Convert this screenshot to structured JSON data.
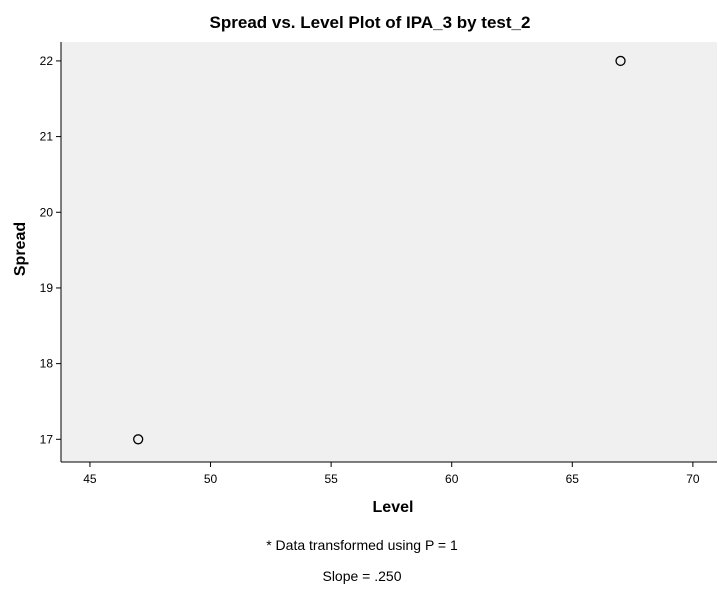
{
  "chart_data": {
    "type": "scatter",
    "title": "Spread vs. Level Plot of IPA_3 by test_2",
    "xlabel": "Level",
    "ylabel": "Spread",
    "xlim": [
      43.8,
      71
    ],
    "ylim": [
      16.7,
      22.25
    ],
    "xticks": [
      "45",
      "50",
      "55",
      "60",
      "65",
      "70"
    ],
    "yticks": [
      "17",
      "18",
      "19",
      "20",
      "21",
      "22"
    ],
    "grid": false,
    "marker": "open-circle",
    "points": [
      {
        "x": 47,
        "y": 17
      },
      {
        "x": 67,
        "y": 22
      }
    ],
    "annotations": [
      "* Data transformed using P = 1",
      "Slope = .250"
    ]
  },
  "colors": {
    "plot_background": "#f0f0f0",
    "page_background": "#ffffff",
    "axis": "#000000",
    "marker_stroke": "#000000"
  }
}
